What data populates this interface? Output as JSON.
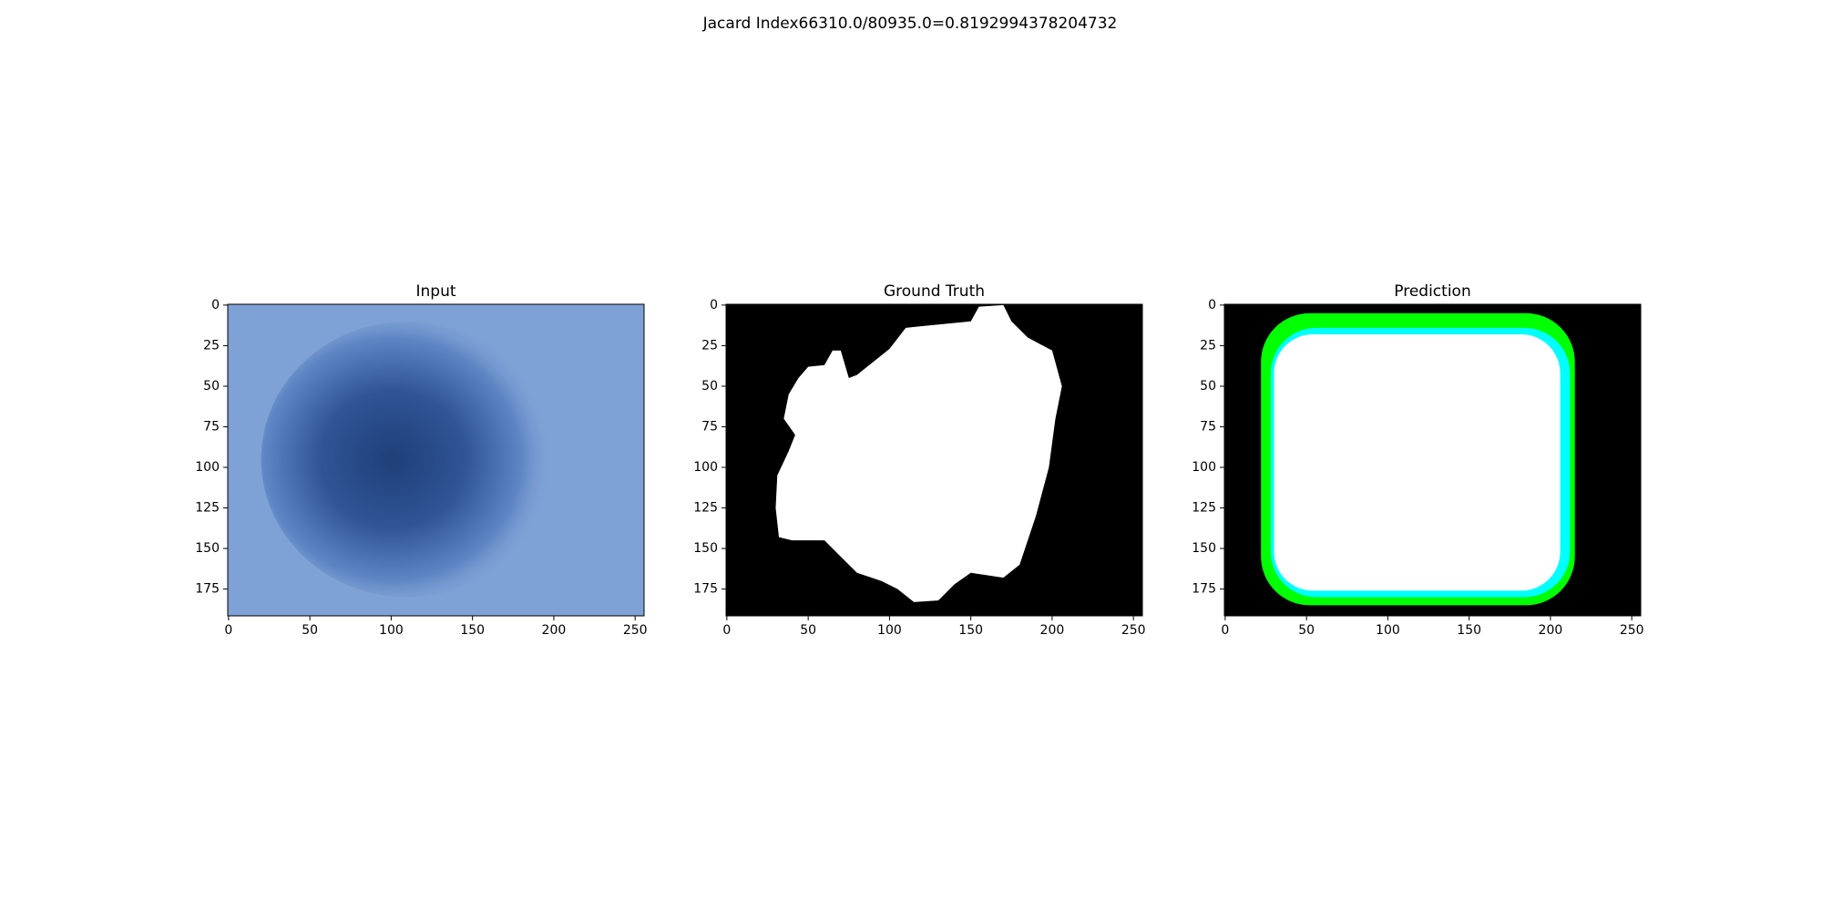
{
  "title": "Jacard Index66310.0/80935.0=0.8192994378204732",
  "panels": [
    {
      "title": "Input",
      "xlim": [
        -0.5,
        255.5
      ],
      "ylim": [
        191.5,
        -0.5
      ],
      "xticks": [
        0,
        50,
        100,
        150,
        200,
        250
      ],
      "yticks": [
        0,
        25,
        50,
        75,
        100,
        125,
        150,
        175
      ]
    },
    {
      "title": "Ground Truth",
      "xlim": [
        -0.5,
        255.5
      ],
      "ylim": [
        191.5,
        -0.5
      ],
      "xticks": [
        0,
        50,
        100,
        150,
        200,
        250
      ],
      "yticks": [
        0,
        25,
        50,
        75,
        100,
        125,
        150,
        175
      ]
    },
    {
      "title": "Prediction",
      "xlim": [
        -0.5,
        255.5
      ],
      "ylim": [
        191.5,
        -0.5
      ],
      "xticks": [
        0,
        50,
        100,
        150,
        200,
        250
      ],
      "yticks": [
        0,
        25,
        50,
        75,
        100,
        125,
        150,
        175
      ]
    }
  ]
}
